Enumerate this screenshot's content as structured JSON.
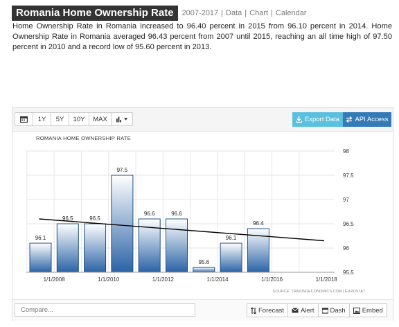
{
  "header": {
    "title": "Romania Home Ownership Rate",
    "years": "2007-2017",
    "links": [
      "Data",
      "Chart",
      "Calendar"
    ]
  },
  "description": "Home Ownership Rate in Romania increased to 96.40 percent in 2015 from 96.10 percent in 2014. Home Ownership Rate in Romania averaged 96.43 percent from 2007 until 2015, reaching an all time high of 97.50 percent in 2010 and a record low of 95.60 percent in 2013.",
  "toolbar": {
    "calendar_icon": "calendar-icon",
    "ranges": [
      "1Y",
      "5Y",
      "10Y",
      "MAX"
    ],
    "chart_type_icon": "bar-chart-icon",
    "export_label": "Export Data",
    "api_label": "API Access"
  },
  "chart_data": {
    "type": "bar",
    "title": "ROMANIA HOME OWNERSHIP RATE",
    "categories": [
      "2007",
      "2008",
      "2009",
      "2010",
      "2011",
      "2012",
      "2013",
      "2014",
      "2015"
    ],
    "values": [
      96.1,
      96.5,
      96.5,
      97.5,
      96.6,
      96.6,
      95.6,
      96.1,
      96.4
    ],
    "value_labels": [
      "96.1",
      "96.5",
      "96.5",
      "97.5",
      "96.6",
      "96.6",
      "95.6",
      "96.1",
      "96.4"
    ],
    "x_tick_labels": [
      "1/1/2008",
      "1/1/2010",
      "1/1/2012",
      "1/1/2014",
      "1/1/2016",
      "1/1/2018"
    ],
    "y_ticks": [
      "98",
      "97.5",
      "97",
      "96.5",
      "96",
      "95.5"
    ],
    "ylim": [
      95.5,
      98
    ],
    "trend_line": {
      "start": 96.6,
      "end": 96.15
    },
    "source": "SOURCE: TRADINGECONOMICS.COM | EUROSTAT",
    "colors": {
      "bar_top": "#ffffff",
      "bar_bottom": "#2a63a6",
      "bar_border": "#1f4f86",
      "trend": "#000000",
      "grid": "#e6e6e6"
    }
  },
  "footer": {
    "compare_placeholder": "Compare...",
    "buttons": [
      {
        "icon": "sort-icon",
        "label": "Forecast"
      },
      {
        "icon": "alert-icon",
        "label": "Alert"
      },
      {
        "icon": "dashboard-icon",
        "label": "Dash"
      },
      {
        "icon": "embed-icon",
        "label": "Embed"
      }
    ]
  }
}
